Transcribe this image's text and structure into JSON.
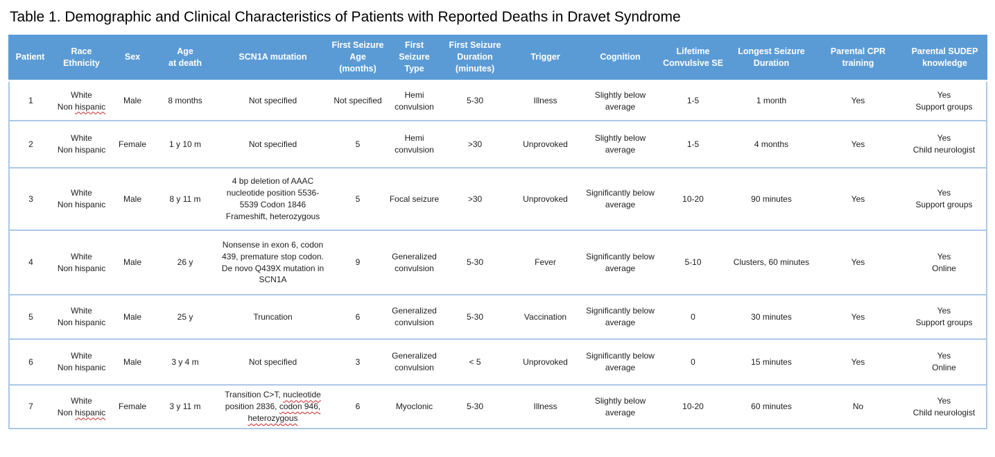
{
  "title": "Table 1. Demographic and Clinical Characteristics of Patients with Reported Deaths in Dravet Syndrome",
  "colors": {
    "header_bg": "#5b9bd5",
    "header_text": "#ffffff",
    "row_border": "#aac8e6",
    "squiggle": "#cc2222"
  },
  "table": {
    "columns": [
      "Patient",
      "Race\nEthnicity",
      "Sex",
      "Age\nat death",
      "SCN1A mutation",
      "First Seizure\nAge\n(months)",
      "First\nSeizure\nType",
      "First Seizure\nDuration\n(minutes)",
      "Trigger",
      "Cognition",
      "Lifetime\nConvulsive SE",
      "Longest Seizure\nDuration",
      "Parental CPR\ntraining",
      "Parental SUDEP\nknowledge"
    ],
    "rows": [
      [
        "1",
        {
          "lines": [
            "White",
            "Non hispanic"
          ],
          "squiggles": [
            "hispanic"
          ]
        },
        "Male",
        "8 months",
        "Not specified",
        "Not specified",
        "Hemi\nconvulsion",
        "5-30",
        "Illness",
        "Slightly below\naverage",
        "1-5",
        "1 month",
        "Yes",
        "Yes\nSupport groups"
      ],
      [
        "2",
        "White\nNon hispanic",
        "Female",
        "1 y 10 m",
        "Not specified",
        "5",
        "Hemi\nconvulsion",
        ">30",
        "Unprovoked",
        "Slightly below\naverage",
        "1-5",
        "4 months",
        "Yes",
        "Yes\nChild neurologist"
      ],
      [
        "3",
        "White\nNon hispanic",
        "Male",
        "8 y 11 m",
        "4 bp deletion of AAAC\nnucleotide position 5536-\n5539 Codon 1846\nFrameshift, heterozygous",
        "5",
        "Focal seizure",
        ">30",
        "Unprovoked",
        "Significantly below\naverage",
        "10-20",
        "90 minutes",
        "Yes",
        "Yes\nSupport groups"
      ],
      [
        "4",
        "White\nNon hispanic",
        "Male",
        "26 y",
        "Nonsense in exon 6, codon\n439, premature stop codon.\nDe novo Q439X mutation in\nSCN1A",
        "9",
        "Generalized\nconvulsion",
        "5-30",
        "Fever",
        "Significantly below\naverage",
        "5-10",
        "Clusters, 60 minutes",
        "Yes",
        "Yes\nOnline"
      ],
      [
        "5",
        "White\nNon hispanic",
        "Male",
        "25 y",
        "Truncation",
        "6",
        "Generalized\nconvulsion",
        "5-30",
        "Vaccination",
        "Significantly below\naverage",
        "0",
        "30 minutes",
        "Yes",
        "Yes\nSupport groups"
      ],
      [
        "6",
        "White\nNon hispanic",
        "Male",
        "3 y 4 m",
        "Not specified",
        "3",
        "Generalized\nconvulsion",
        "< 5",
        "Unprovoked",
        "Significantly below\naverage",
        "0",
        "15 minutes",
        "Yes",
        "Yes\nOnline"
      ],
      [
        "7",
        {
          "lines": [
            "White",
            "Non hispanic"
          ],
          "squiggles": [
            "hispanic"
          ]
        },
        "Female",
        "3 y 11 m",
        {
          "lines": [
            "Transition C>T, nucleotide",
            "position 2836, codon 946,",
            "heterozygous"
          ],
          "squiggles": [
            "nucleotide",
            "codon 946,",
            "heterozygous"
          ]
        },
        "6",
        "Myoclonic",
        "5-30",
        "Illness",
        "Slightly below\naverage",
        "10-20",
        "60 minutes",
        "No",
        "Yes\nChild neurologist"
      ]
    ]
  }
}
